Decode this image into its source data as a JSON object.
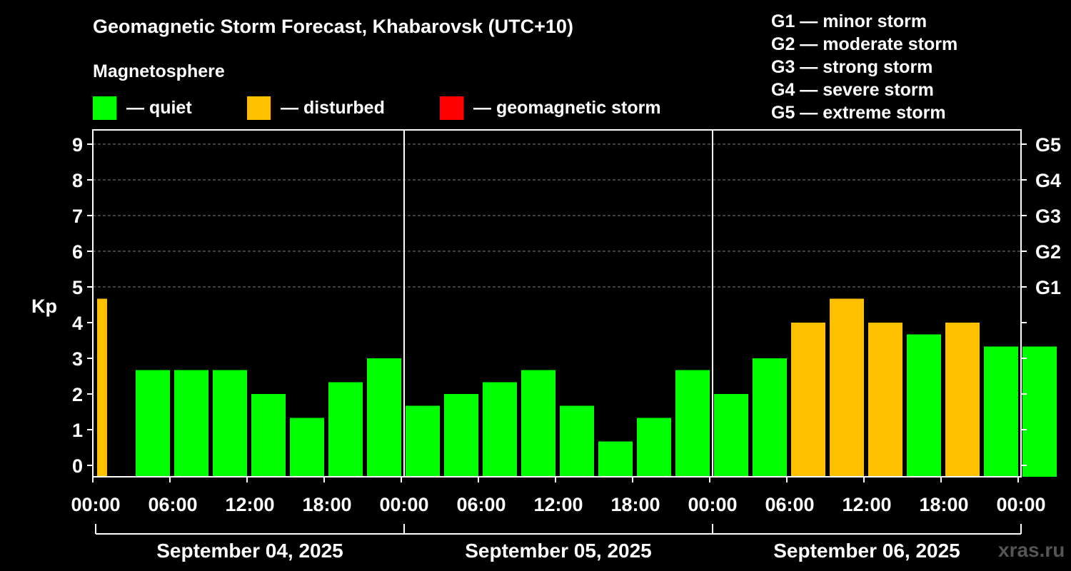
{
  "chart_data": {
    "type": "bar",
    "title": "Geomagnetic Storm Forecast, Khabarovsk (UTC+10)",
    "ylabel": "Kp",
    "ylim": [
      0,
      9.5
    ],
    "y_ticks": [
      "0",
      "1",
      "2",
      "3",
      "4",
      "5",
      "6",
      "7",
      "8",
      "9"
    ],
    "right_tick_labels": [
      {
        "kp": 5,
        "label": "G1"
      },
      {
        "kp": 6,
        "label": "G2"
      },
      {
        "kp": 7,
        "label": "G3"
      },
      {
        "kp": 8,
        "label": "G4"
      },
      {
        "kp": 9,
        "label": "G5"
      }
    ],
    "x_tick_labels": [
      "00:00",
      "06:00",
      "12:00",
      "18:00",
      "00:00",
      "06:00",
      "12:00",
      "18:00",
      "00:00",
      "06:00",
      "12:00",
      "18:00",
      "00:00"
    ],
    "days": [
      "September 04, 2025",
      "September 05, 2025",
      "September 06, 2025"
    ],
    "values": [
      4.67,
      2.67,
      2.67,
      2.67,
      2.0,
      1.33,
      2.33,
      3.0,
      1.67,
      2.0,
      2.33,
      2.67,
      1.67,
      0.67,
      1.33,
      2.67,
      2.0,
      3.0,
      4.0,
      4.67,
      4.0,
      3.67,
      4.0,
      3.33,
      3.33
    ],
    "levels": [
      "disturbed",
      "quiet",
      "quiet",
      "quiet",
      "quiet",
      "quiet",
      "quiet",
      "quiet",
      "quiet",
      "quiet",
      "quiet",
      "quiet",
      "quiet",
      "quiet",
      "quiet",
      "quiet",
      "quiet",
      "quiet",
      "disturbed",
      "disturbed",
      "disturbed",
      "quiet",
      "disturbed",
      "quiet",
      "quiet"
    ],
    "level_colors": {
      "quiet": "#00ff00",
      "disturbed": "#ffc000",
      "storm": "#ff0000"
    },
    "grid_color": "#808080"
  },
  "legend": {
    "heading": "Magnetosphere",
    "quiet": "— quiet",
    "disturbed": "— disturbed",
    "storm": "— geomagnetic storm"
  },
  "gscale": [
    "G1 — minor storm",
    "G2 — moderate storm",
    "G3 — strong storm",
    "G4 — severe storm",
    "G5 — extreme storm"
  ],
  "watermark": "xras.ru"
}
